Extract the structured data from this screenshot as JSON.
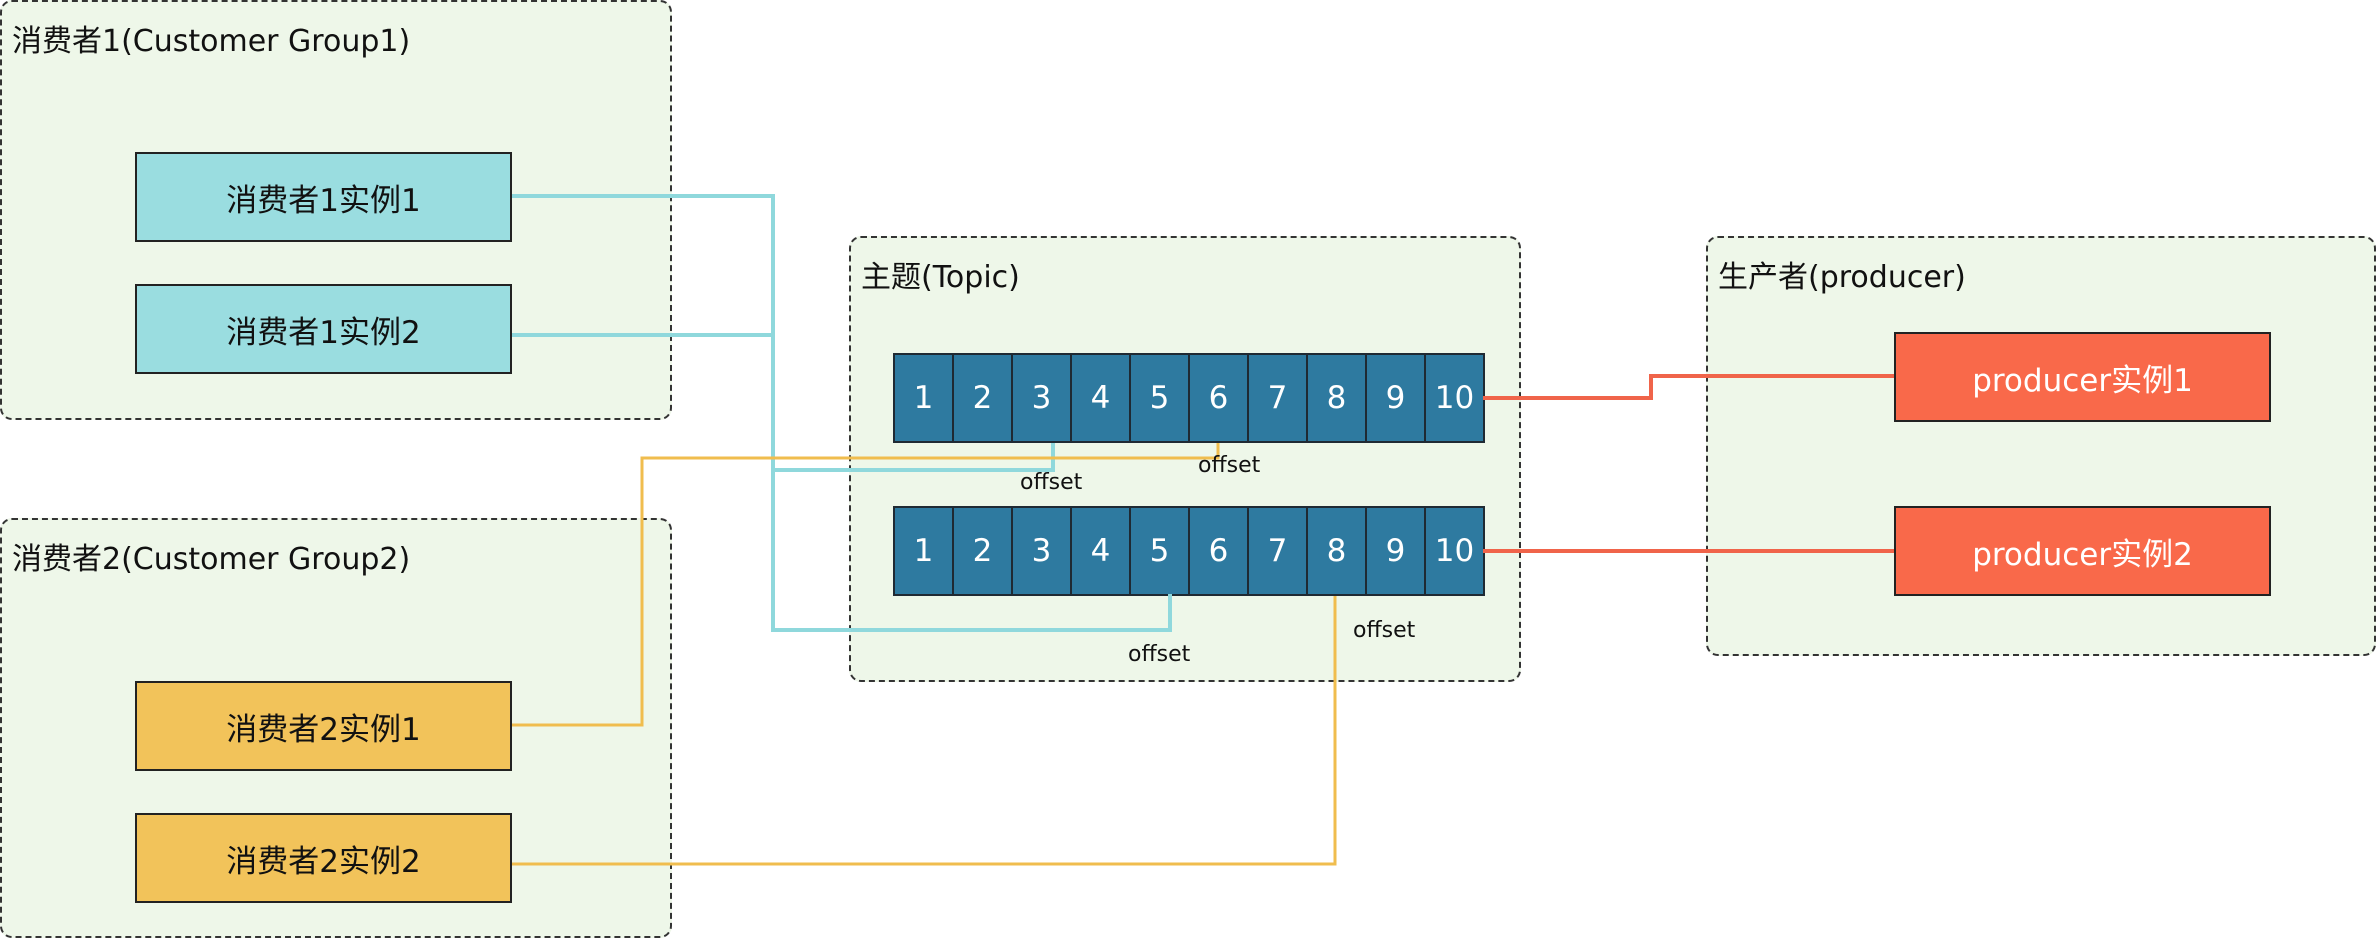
{
  "consumer_group_1": {
    "title": "消费者1(Customer Group1)",
    "instances": [
      "消费者1实例1",
      "消费者1实例2"
    ]
  },
  "consumer_group_2": {
    "title": "消费者2(Customer Group2)",
    "instances": [
      "消费者2实例1",
      "消费者2实例2"
    ]
  },
  "topic": {
    "title": "主题(Topic)",
    "partitions": [
      [
        "1",
        "2",
        "3",
        "4",
        "5",
        "6",
        "7",
        "8",
        "9",
        "10"
      ],
      [
        "1",
        "2",
        "3",
        "4",
        "5",
        "6",
        "7",
        "8",
        "9",
        "10"
      ]
    ]
  },
  "producer_group": {
    "title": "生产者(producer)",
    "instances": [
      "producer实例1",
      "producer实例2"
    ]
  },
  "offset_labels": [
    "offset",
    "offset",
    "offset",
    "offset"
  ],
  "colors": {
    "group_bg": "#eef7e9",
    "consumer1": "#9adde0",
    "consumer2": "#f2c35a",
    "producer": "#f9694a",
    "partition_cell": "#2e7aa0",
    "line_consumer1": "#8fd8dc",
    "line_consumer2": "#f0bd4e",
    "line_producer": "#f0644a"
  }
}
